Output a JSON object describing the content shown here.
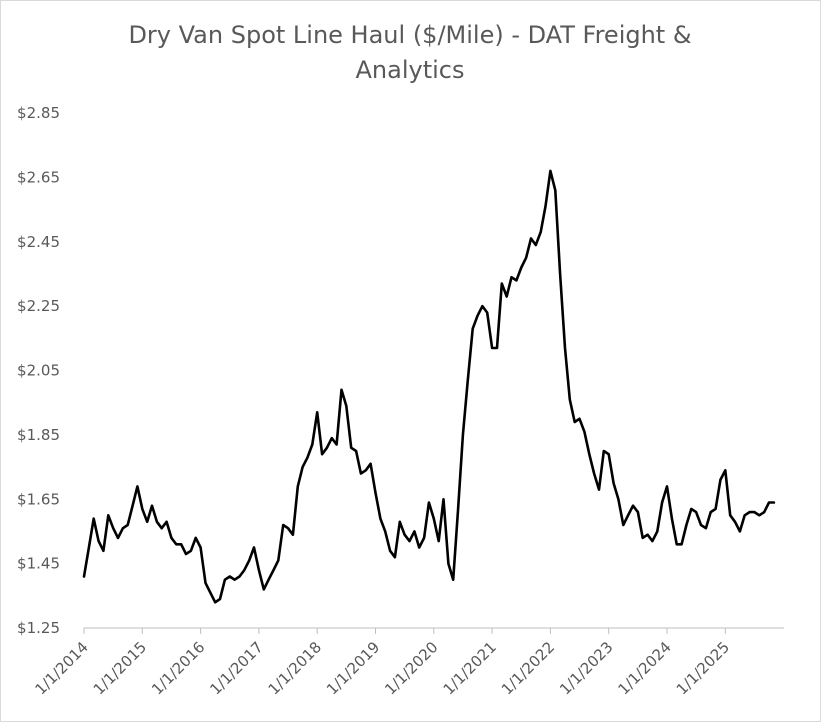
{
  "chart_data": {
    "type": "line",
    "title_line1": "Dry Van Spot Line Haul ($/Mile) - DAT Freight &",
    "title_line2": "Analytics",
    "xlabel": "",
    "ylabel": "",
    "ylim": [
      1.25,
      2.85
    ],
    "yticks": [
      1.25,
      1.45,
      1.65,
      1.85,
      2.05,
      2.25,
      2.45,
      2.65,
      2.85
    ],
    "ytick_labels": [
      "$1.25",
      "$1.45",
      "$1.65",
      "$1.85",
      "$2.05",
      "$2.25",
      "$2.45",
      "$2.65",
      "$2.85"
    ],
    "xticks": [
      "1/1/2014",
      "1/1/2015",
      "1/1/2016",
      "1/1/2017",
      "1/1/2018",
      "1/1/2019",
      "1/1/2020",
      "1/1/2021",
      "1/1/2022",
      "1/1/2023",
      "1/1/2024",
      "1/1/2025"
    ],
    "grid": false,
    "line_color": "#000000",
    "series": [
      {
        "x": [
          "2014-01",
          "2014-02",
          "2014-03",
          "2014-04",
          "2014-05",
          "2014-06",
          "2014-07",
          "2014-08",
          "2014-09",
          "2014-10",
          "2014-11",
          "2014-12",
          "2015-01",
          "2015-02",
          "2015-03",
          "2015-04",
          "2015-05",
          "2015-06",
          "2015-07",
          "2015-08",
          "2015-09",
          "2015-10",
          "2015-11",
          "2015-12",
          "2016-01",
          "2016-02",
          "2016-03",
          "2016-04",
          "2016-05",
          "2016-06",
          "2016-07",
          "2016-08",
          "2016-09",
          "2016-10",
          "2016-11",
          "2016-12",
          "2017-01",
          "2017-02",
          "2017-03",
          "2017-04",
          "2017-05",
          "2017-06",
          "2017-07",
          "2017-08",
          "2017-09",
          "2017-10",
          "2017-11",
          "2017-12",
          "2018-01",
          "2018-02",
          "2018-03",
          "2018-04",
          "2018-05",
          "2018-06",
          "2018-07",
          "2018-08",
          "2018-09",
          "2018-10",
          "2018-11",
          "2018-12",
          "2019-01",
          "2019-02",
          "2019-03",
          "2019-04",
          "2019-05",
          "2019-06",
          "2019-07",
          "2019-08",
          "2019-09",
          "2019-10",
          "2019-11",
          "2019-12",
          "2020-01",
          "2020-02",
          "2020-03",
          "2020-04",
          "2020-05",
          "2020-06",
          "2020-07",
          "2020-08",
          "2020-09",
          "2020-10",
          "2020-11",
          "2020-12",
          "2021-01",
          "2021-02",
          "2021-03",
          "2021-04",
          "2021-05",
          "2021-06",
          "2021-07",
          "2021-08",
          "2021-09",
          "2021-10",
          "2021-11",
          "2021-12",
          "2022-01",
          "2022-02",
          "2022-03",
          "2022-04",
          "2022-05",
          "2022-06",
          "2022-07",
          "2022-08",
          "2022-09",
          "2022-10",
          "2022-11",
          "2022-12",
          "2023-01",
          "2023-02",
          "2023-03",
          "2023-04",
          "2023-05",
          "2023-06",
          "2023-07",
          "2023-08",
          "2023-09",
          "2023-10",
          "2023-11",
          "2023-12",
          "2024-01",
          "2024-02",
          "2024-03",
          "2024-04",
          "2024-05",
          "2024-06",
          "2024-07",
          "2024-08",
          "2024-09",
          "2024-10",
          "2024-11",
          "2024-12",
          "2025-01",
          "2025-02",
          "2025-03",
          "2025-04",
          "2025-05",
          "2025-06",
          "2025-07",
          "2025-08",
          "2025-09",
          "2025-10",
          "2025-11"
        ],
        "values": [
          1.41,
          1.5,
          1.59,
          1.52,
          1.49,
          1.6,
          1.56,
          1.53,
          1.56,
          1.57,
          1.63,
          1.69,
          1.62,
          1.58,
          1.63,
          1.58,
          1.56,
          1.58,
          1.53,
          1.51,
          1.51,
          1.48,
          1.49,
          1.53,
          1.5,
          1.39,
          1.36,
          1.33,
          1.34,
          1.4,
          1.41,
          1.4,
          1.41,
          1.43,
          1.46,
          1.5,
          1.43,
          1.37,
          1.4,
          1.43,
          1.46,
          1.57,
          1.56,
          1.54,
          1.69,
          1.75,
          1.78,
          1.82,
          1.92,
          1.79,
          1.81,
          1.84,
          1.82,
          1.99,
          1.94,
          1.81,
          1.8,
          1.73,
          1.74,
          1.76,
          1.67,
          1.59,
          1.55,
          1.49,
          1.47,
          1.58,
          1.54,
          1.52,
          1.55,
          1.5,
          1.53,
          1.64,
          1.59,
          1.52,
          1.65,
          1.45,
          1.4,
          1.62,
          1.85,
          2.02,
          2.18,
          2.22,
          2.25,
          2.23,
          2.12,
          2.12,
          2.32,
          2.28,
          2.34,
          2.33,
          2.37,
          2.4,
          2.46,
          2.44,
          2.48,
          2.56,
          2.67,
          2.61,
          2.35,
          2.12,
          1.96,
          1.89,
          1.9,
          1.86,
          1.79,
          1.73,
          1.68,
          1.8,
          1.79,
          1.7,
          1.65,
          1.57,
          1.6,
          1.63,
          1.61,
          1.53,
          1.54,
          1.52,
          1.55,
          1.64,
          1.69,
          1.59,
          1.51,
          1.51,
          1.57,
          1.62,
          1.61,
          1.57,
          1.56,
          1.61,
          1.62,
          1.71,
          1.74,
          1.6,
          1.58,
          1.55,
          1.6,
          1.61,
          1.61,
          1.6,
          1.61,
          1.64,
          1.64
        ]
      }
    ]
  }
}
